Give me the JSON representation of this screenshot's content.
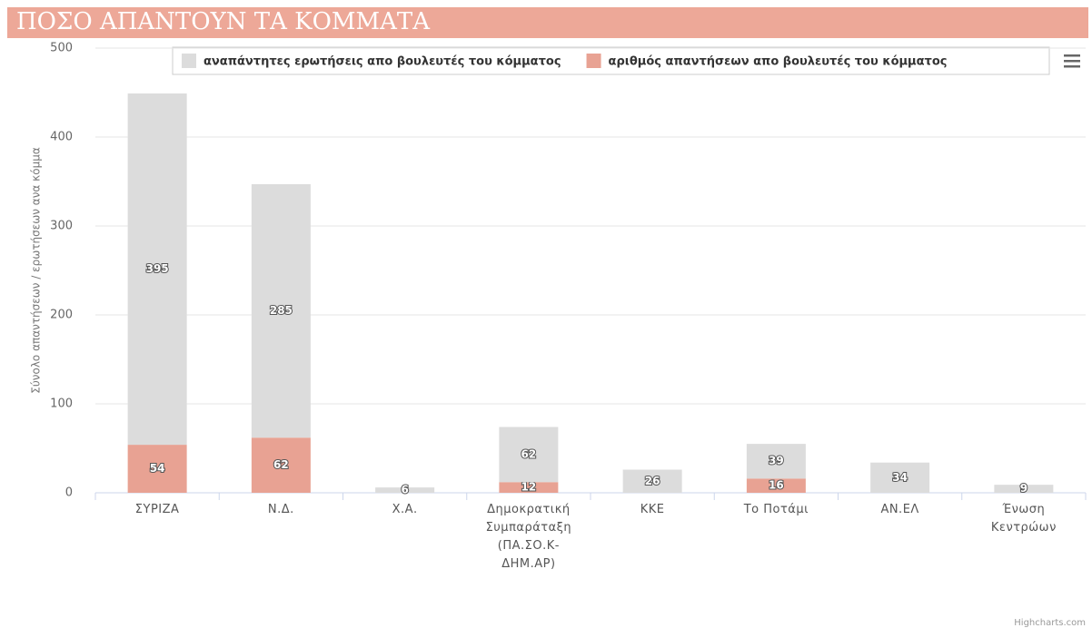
{
  "chart_data": {
    "type": "stacked-bar",
    "title": "ΠΟΣΟ ΑΠΑΝΤΟΥΝ ΤΑ ΚΟΜΜΑΤΑ",
    "y_label": "Σύνολο απαντήσεων / ερωτήσεων ανα κόμμα",
    "credit": "Highcharts.com",
    "categories": [
      "ΣΥΡΙΖΑ",
      "Ν.Δ.",
      "Χ.Α.",
      "Δημοκρατική Συμπαράταξη (ΠΑ.ΣΟ.Κ-ΔΗΜ.ΑΡ)",
      "ΚΚΕ",
      "Το Ποτάμι",
      "ΑΝ.ΕΛ",
      "Ένωση Κεντρώων"
    ],
    "series": [
      {
        "name": "αριθμός απαντήσεων απο βουλευτές του κόμματος",
        "color": "#e8a293",
        "values": [
          54,
          62,
          null,
          12,
          null,
          16,
          null,
          null
        ]
      },
      {
        "name": "αναπάντητες ερωτήσεις απο βουλευτές του κόμματος",
        "color": "#dcdcdc",
        "values": [
          395,
          285,
          6,
          62,
          26,
          39,
          34,
          9
        ]
      }
    ],
    "legend_order": [
      1,
      0
    ],
    "ylim": [
      0,
      500
    ],
    "yticks": [
      0,
      100,
      200,
      300,
      400,
      500
    ],
    "grid": true
  }
}
